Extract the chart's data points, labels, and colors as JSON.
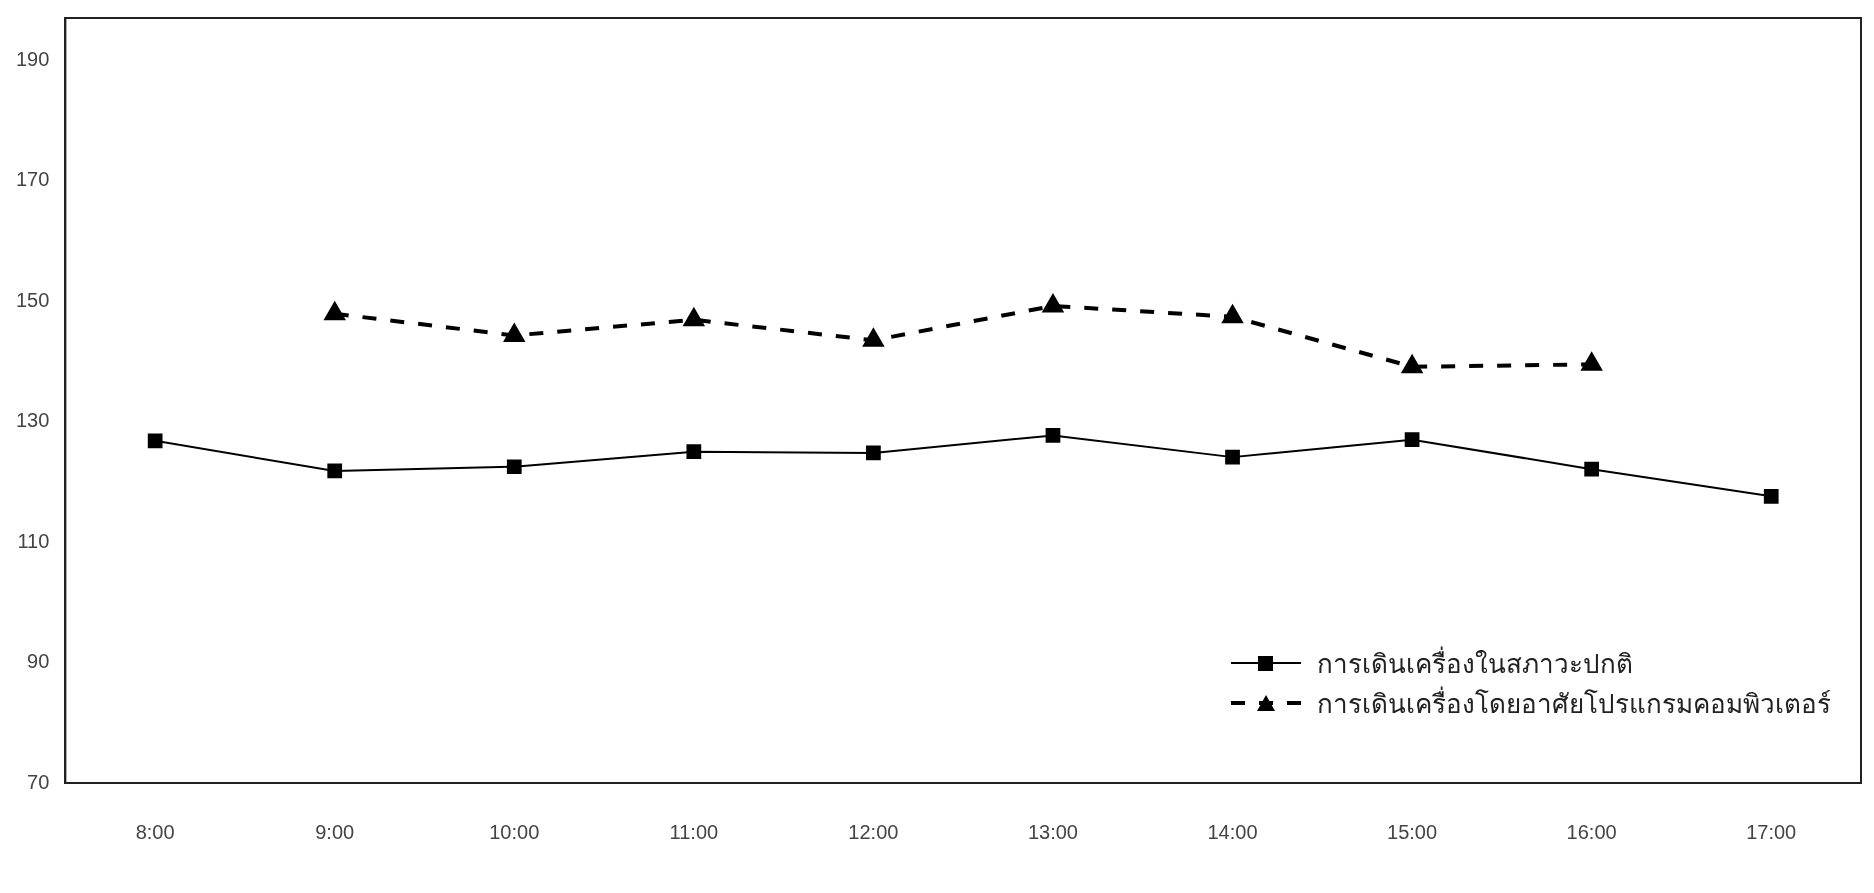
{
  "chart_data": {
    "type": "line",
    "categories": [
      "8:00",
      "9:00",
      "10:00",
      "11:00",
      "12:00",
      "13:00",
      "14:00",
      "15:00",
      "16:00",
      "17:00"
    ],
    "series": [
      {
        "name": "การเดินเครื่องในสภาวะปกติ",
        "color": "#000000",
        "marker": "square",
        "line_style": "solid",
        "values": [
          126.8,
          121.8,
          122.5,
          125,
          124.8,
          127.7,
          124.1,
          127,
          122.1,
          117.6
        ]
      },
      {
        "name": "การเดินเครื่องโดยอาศัยโปรแกรมคอมพิวเตอร์",
        "color": "#000000",
        "marker": "triangle",
        "line_style": "dashed",
        "values": [
          null,
          147.9,
          144.3,
          146.9,
          143.5,
          149.2,
          147.4,
          139.1,
          139.5,
          null
        ]
      }
    ],
    "ylim": [
      70,
      197
    ],
    "yticks": [
      70,
      90,
      110,
      130,
      150,
      170,
      190
    ],
    "grid": false,
    "legend": "bottom right"
  }
}
